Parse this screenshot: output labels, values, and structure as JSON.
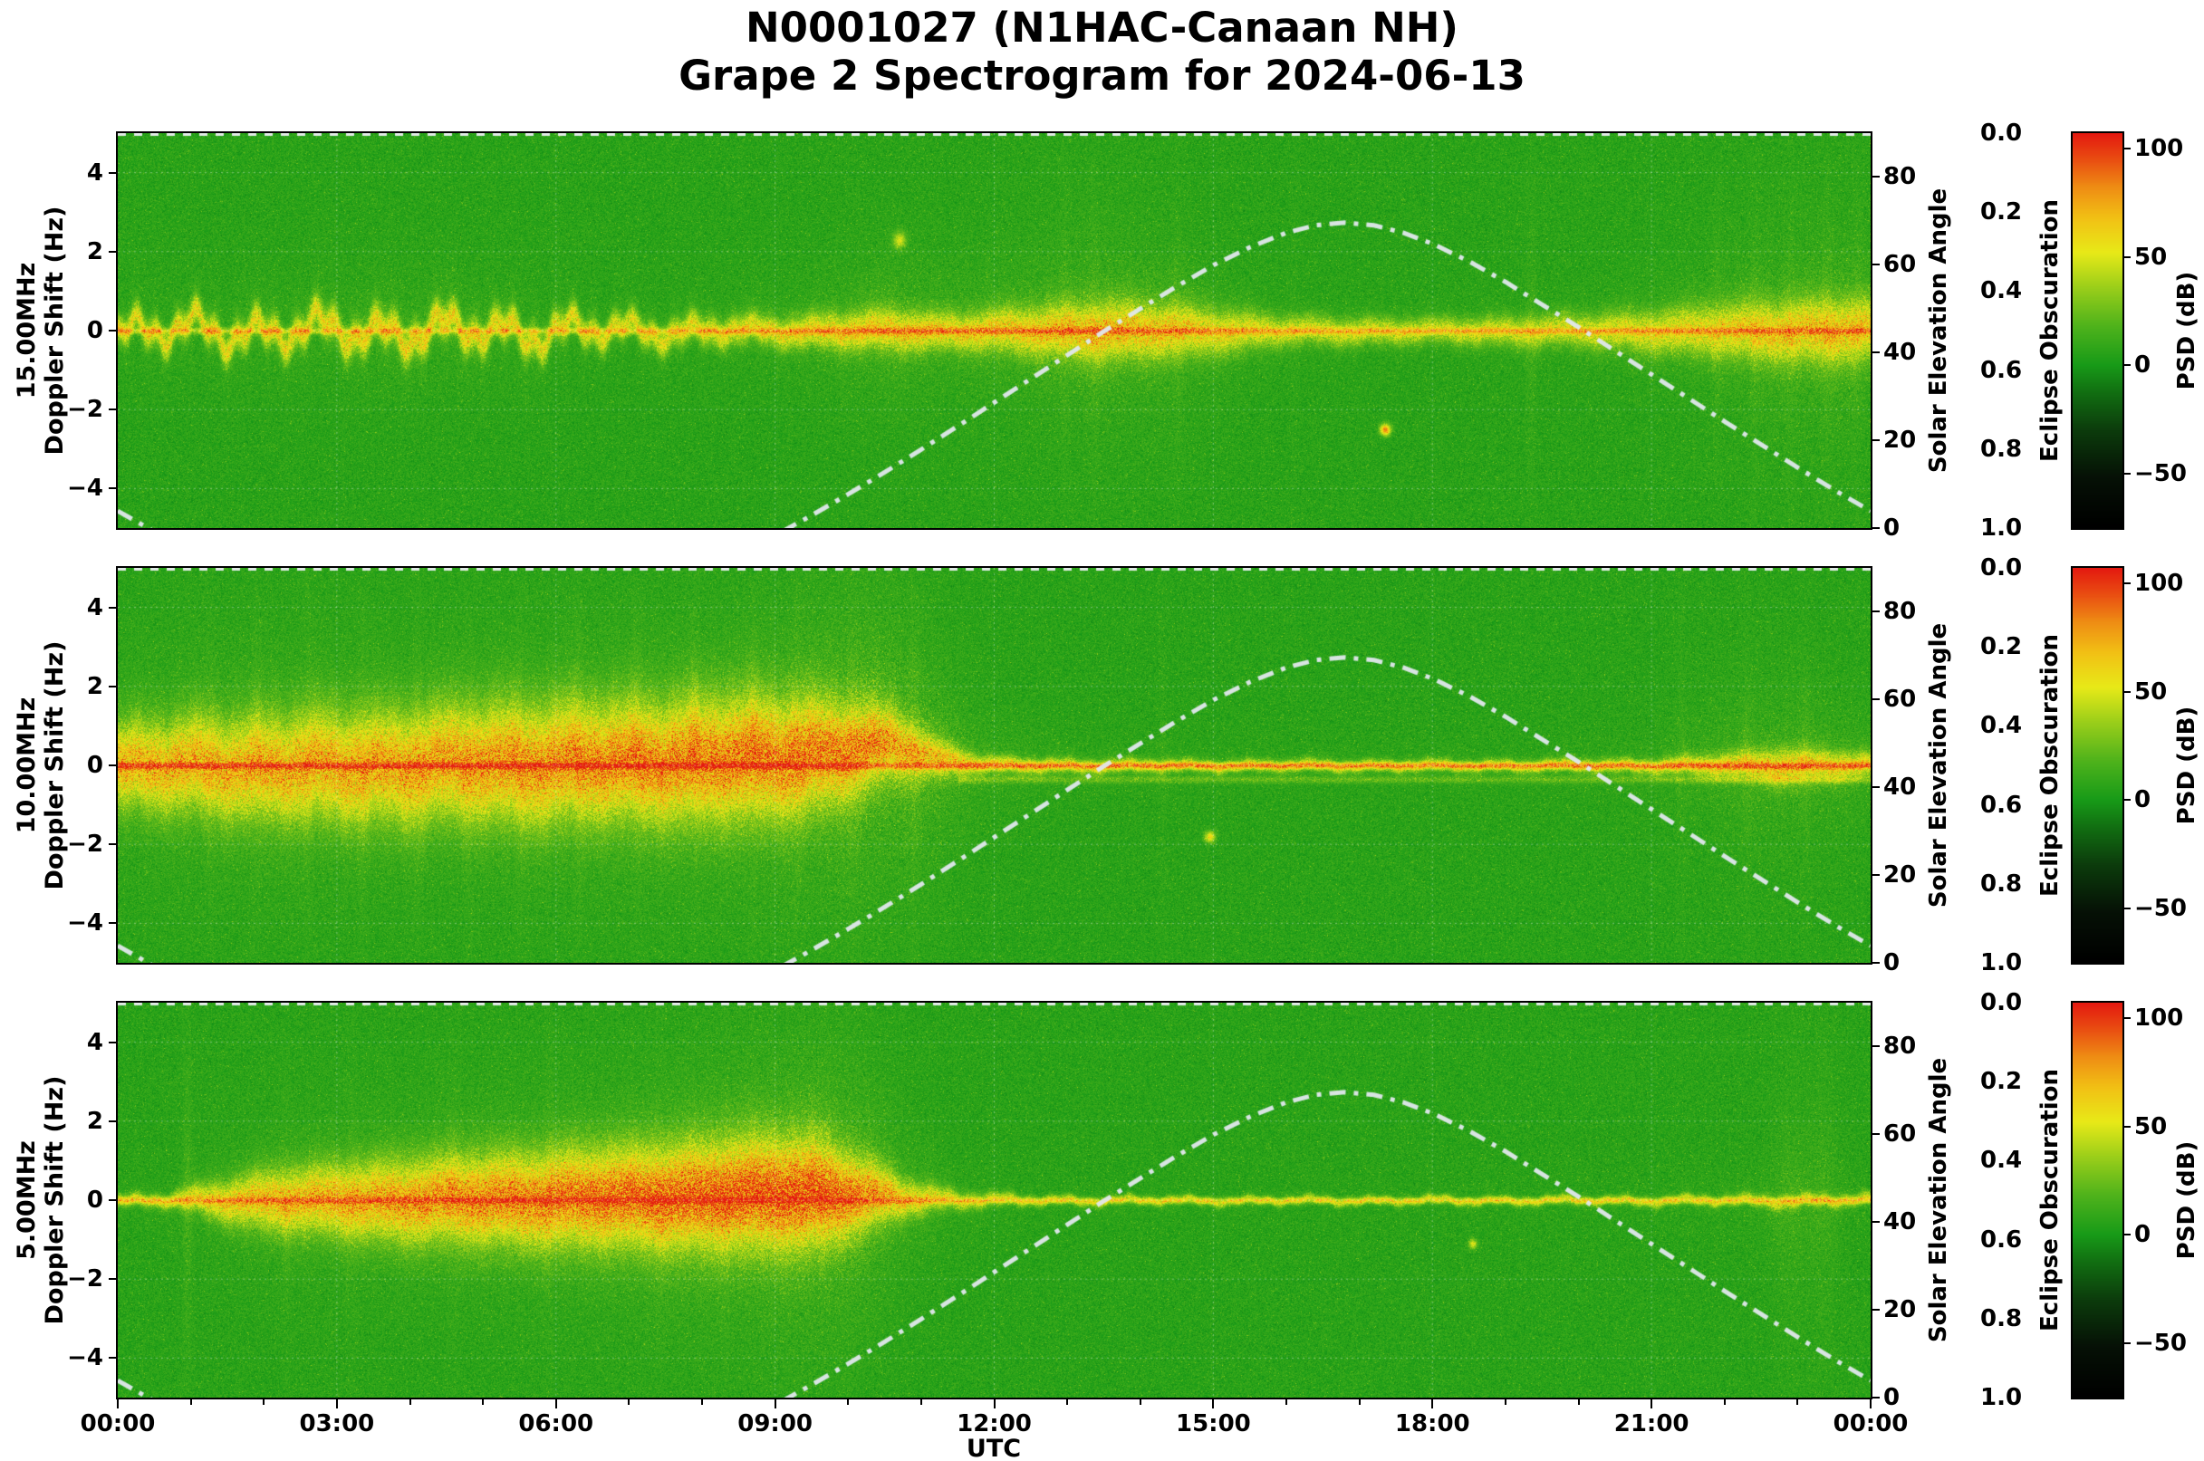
{
  "title": {
    "line1": "N0001027 (N1HAC-Canaan NH)",
    "line2": "Grape 2 Spectrogram for 2024-06-13"
  },
  "chart_data": {
    "type": "heatmap",
    "description": "Three stacked Doppler-shift spectrograms (15, 10, 5 MHz) vs UTC time with solar elevation dash-dot curve overlay",
    "x_axis": {
      "label": "UTC",
      "range_hours": [
        0,
        24
      ],
      "tick_hours": [
        0,
        3,
        6,
        9,
        12,
        15,
        18,
        21,
        24
      ],
      "tick_labels": [
        "00:00",
        "03:00",
        "06:00",
        "09:00",
        "12:00",
        "15:00",
        "18:00",
        "21:00",
        "00:00"
      ]
    },
    "doppler_axis": {
      "range": [
        -5,
        5
      ],
      "tick_values": [
        -4,
        -2,
        0,
        2,
        4
      ],
      "tick_labels": [
        "−4",
        "−2",
        "0",
        "2",
        "4"
      ]
    },
    "solar_axis": {
      "label": "Solar Elevation Angle",
      "range": [
        0,
        90
      ],
      "tick_values": [
        0,
        20,
        40,
        60,
        80
      ],
      "tick_labels": [
        "0",
        "20",
        "40",
        "60",
        "80"
      ]
    },
    "eclipse_axis": {
      "label": "Eclipse Obscuration",
      "range": [
        0,
        1
      ],
      "direction": "inverted",
      "tick_labels": [
        "0.0",
        "0.2",
        "0.4",
        "0.6",
        "0.8",
        "1.0"
      ]
    },
    "colorbar": {
      "label": "PSD (dB)",
      "range": [
        -75,
        107
      ],
      "tick_values": [
        100,
        50,
        0,
        -50
      ],
      "tick_labels": [
        "100",
        "50",
        "0",
        "−50"
      ],
      "stops": [
        {
          "v": -75,
          "c": "#000000"
        },
        {
          "v": -52,
          "c": "#061106"
        },
        {
          "v": -30,
          "c": "#0c3c0c"
        },
        {
          "v": -12,
          "c": "#127112"
        },
        {
          "v": 0,
          "c": "#189b18"
        },
        {
          "v": 18,
          "c": "#4fb31c"
        },
        {
          "v": 36,
          "c": "#9ccf1a"
        },
        {
          "v": 52,
          "c": "#e8ea18"
        },
        {
          "v": 68,
          "c": "#f2c115"
        },
        {
          "v": 82,
          "c": "#ef8e14"
        },
        {
          "v": 94,
          "c": "#ea5212"
        },
        {
          "v": 107,
          "c": "#e41a10"
        }
      ]
    },
    "solar_elevation_curve": [
      [
        0,
        3.9
      ],
      [
        0.5,
        -0.8
      ],
      [
        1,
        -5.1
      ],
      [
        2,
        -12.8
      ],
      [
        3,
        -18.6
      ],
      [
        4,
        -22.2
      ],
      [
        5,
        -23.0
      ],
      [
        6,
        -21.1
      ],
      [
        7,
        -16.5
      ],
      [
        8,
        -9.9
      ],
      [
        9,
        -1.7
      ],
      [
        9.5,
        2.9
      ],
      [
        10,
        7.7
      ],
      [
        10.5,
        12.7
      ],
      [
        11,
        17.9
      ],
      [
        11.5,
        23.2
      ],
      [
        12,
        28.6
      ],
      [
        12.5,
        34.0
      ],
      [
        13,
        39.4
      ],
      [
        13.5,
        44.8
      ],
      [
        14,
        50.0
      ],
      [
        14.5,
        55.1
      ],
      [
        15,
        59.9
      ],
      [
        15.5,
        64.0
      ],
      [
        16,
        67.3
      ],
      [
        16.4,
        69.0
      ],
      [
        16.8,
        69.6
      ],
      [
        17.2,
        69.0
      ],
      [
        17.6,
        67.3
      ],
      [
        18,
        64.8
      ],
      [
        18.5,
        60.8
      ],
      [
        19,
        56.1
      ],
      [
        20,
        45.8
      ],
      [
        21,
        35.0
      ],
      [
        22,
        24.3
      ],
      [
        23,
        13.8
      ],
      [
        23.5,
        8.7
      ],
      [
        24,
        3.9
      ]
    ],
    "panels": [
      {
        "id": "15mhz",
        "ylabel_line1": "15.00MHz",
        "ylabel_line2": "Doppler Shift (Hz)",
        "band": {
          "h": [
            0,
            2,
            4,
            5.5,
            7,
            9,
            10.5,
            11.5,
            12.5,
            13.5,
            14.5,
            16,
            18,
            20,
            21.5,
            22.5,
            23.5,
            24
          ],
          "peak": [
            46,
            46,
            48,
            46,
            44,
            46,
            52,
            50,
            52,
            55,
            50,
            42,
            40,
            42,
            46,
            50,
            52,
            50
          ],
          "width": [
            0.22,
            0.25,
            0.28,
            0.25,
            0.22,
            0.25,
            0.35,
            0.3,
            0.4,
            0.5,
            0.45,
            0.25,
            0.22,
            0.28,
            0.4,
            0.5,
            0.55,
            0.5
          ],
          "fuzz": [
            14,
            16,
            20,
            16,
            10,
            14,
            26,
            22,
            26,
            30,
            26,
            8,
            7,
            10,
            18,
            26,
            30,
            26
          ],
          "lam": [
            0.7,
            0.9,
            1.1,
            0.9,
            0.6,
            0.8,
            1.4,
            1.2,
            1.5,
            1.8,
            1.5,
            0.5,
            0.45,
            0.7,
            1.2,
            1.6,
            1.8,
            1.6
          ],
          "wig_h": [
            0,
            6,
            7.5,
            9,
            11,
            24
          ],
          "wig_a": [
            0.32,
            0.3,
            0.18,
            0.08,
            0.05,
            0.05
          ],
          "line": 30
        },
        "streaks": [
          {
            "t": 12.95,
            "a": 8
          },
          {
            "t": 13.35,
            "a": 9
          },
          {
            "t": 14.5,
            "a": 8
          },
          {
            "t": 16.1,
            "a": 6
          },
          {
            "t": 19.35,
            "a": 12
          },
          {
            "t": 21.9,
            "a": 8
          },
          {
            "t": 22.4,
            "a": 9
          },
          {
            "t": 22.9,
            "a": 9
          },
          {
            "t": 23.4,
            "a": 10
          },
          {
            "t": 23.8,
            "a": 10
          }
        ],
        "spots": [
          {
            "t": 17.35,
            "f": -2.5,
            "a": 80,
            "st": 0.05,
            "sf": 0.1
          },
          {
            "t": 10.7,
            "f": 2.3,
            "a": 40,
            "st": 0.06,
            "sf": 0.15
          }
        ]
      },
      {
        "id": "10mhz",
        "ylabel_line1": "10.00MHz",
        "ylabel_line2": "Doppler Shift (Hz)",
        "band": {
          "h": [
            0,
            1,
            2.5,
            4,
            5.5,
            7,
            8.5,
            9.5,
            10.3,
            11,
            11.8,
            13,
            15,
            17,
            19,
            21,
            22,
            22.8,
            23.5,
            24
          ],
          "peak": [
            56,
            55,
            56,
            58,
            62,
            64,
            66,
            64,
            60,
            52,
            48,
            46,
            45,
            44,
            44,
            46,
            50,
            52,
            50,
            48
          ],
          "width": [
            0.7,
            0.8,
            0.9,
            0.95,
            1.0,
            1.0,
            1.05,
            0.95,
            0.7,
            0.4,
            0.15,
            0.12,
            0.1,
            0.1,
            0.1,
            0.12,
            0.2,
            0.3,
            0.25,
            0.2
          ],
          "fuzz": [
            30,
            34,
            36,
            34,
            36,
            38,
            40,
            46,
            48,
            40,
            18,
            10,
            8,
            7,
            7,
            12,
            22,
            26,
            22,
            18
          ],
          "lam": [
            1.4,
            1.7,
            1.8,
            1.7,
            1.8,
            1.9,
            2.0,
            2.3,
            2.4,
            2.0,
            1.0,
            0.5,
            0.4,
            0.4,
            0.4,
            0.7,
            1.2,
            1.4,
            1.2,
            1.0
          ],
          "c_h": [
            0,
            3,
            5,
            7,
            9,
            9.8,
            10.6,
            11.2,
            12,
            24
          ],
          "c_v": [
            0,
            -0.05,
            0.05,
            0.1,
            0.2,
            0.35,
            0.55,
            0.2,
            0,
            0
          ],
          "wig_h": [
            0,
            10,
            11,
            24
          ],
          "wig_a": [
            0.12,
            0.1,
            0.04,
            0.04
          ],
          "line": 38,
          "line2": {
            "f": -0.35,
            "a": 16,
            "from": 11.5
          }
        },
        "streaks": [
          {
            "t": 1.25,
            "a": 10
          },
          {
            "t": 1.9,
            "a": 9
          },
          {
            "t": 2.6,
            "a": 10
          },
          {
            "t": 3.35,
            "a": 11
          },
          {
            "t": 4.1,
            "a": 10
          },
          {
            "t": 4.8,
            "a": 9
          },
          {
            "t": 5.5,
            "a": 10
          },
          {
            "t": 6.3,
            "a": 11
          },
          {
            "t": 7.1,
            "a": 10
          },
          {
            "t": 7.9,
            "a": 11
          },
          {
            "t": 8.7,
            "a": 10
          },
          {
            "t": 9.3,
            "a": 9
          },
          {
            "t": 10.05,
            "a": 10
          },
          {
            "t": 10.9,
            "a": 12
          },
          {
            "t": 14.3,
            "a": 7
          },
          {
            "t": 21.4,
            "a": 8
          },
          {
            "t": 22.3,
            "a": 9
          },
          {
            "t": 23.1,
            "a": 8
          }
        ],
        "spots": [
          {
            "t": 14.95,
            "f": -1.8,
            "a": 55,
            "st": 0.05,
            "sf": 0.1
          }
        ]
      },
      {
        "id": "5mhz",
        "ylabel_line1": "5.00MHz",
        "ylabel_line2": "Doppler Shift (Hz)",
        "band": {
          "h": [
            0,
            0.7,
            1.3,
            2,
            3,
            4,
            5,
            6,
            7,
            8,
            9,
            9.6,
            10.2,
            10.8,
            11.5,
            12.5,
            14,
            17,
            20,
            22,
            22.8,
            23.4,
            24
          ],
          "peak": [
            40,
            42,
            50,
            55,
            58,
            62,
            66,
            68,
            70,
            72,
            74,
            72,
            62,
            50,
            40,
            34,
            33,
            33,
            34,
            35,
            36,
            38,
            38
          ],
          "width": [
            0.1,
            0.12,
            0.3,
            0.5,
            0.6,
            0.7,
            0.75,
            0.8,
            0.85,
            0.9,
            0.95,
            0.9,
            0.6,
            0.3,
            0.15,
            0.08,
            0.07,
            0.07,
            0.07,
            0.09,
            0.12,
            0.1,
            0.1
          ],
          "fuzz": [
            6,
            8,
            18,
            26,
            30,
            32,
            34,
            36,
            40,
            44,
            48,
            50,
            44,
            24,
            10,
            5,
            4,
            4,
            5,
            8,
            14,
            10,
            6
          ],
          "lam": [
            0.4,
            0.5,
            0.9,
            1.2,
            1.3,
            1.4,
            1.5,
            1.6,
            1.7,
            1.9,
            2.1,
            2.2,
            2.0,
            1.2,
            0.6,
            0.3,
            0.25,
            0.25,
            0.3,
            0.5,
            0.8,
            0.6,
            0.4
          ],
          "c_h": [
            0,
            2,
            4,
            6,
            8,
            9.5,
            10.5,
            12,
            24
          ],
          "c_v": [
            0,
            0,
            0,
            0.05,
            0.1,
            0.2,
            0.1,
            0,
            0
          ],
          "wig_h": [
            0,
            24
          ],
          "wig_a": [
            0.06,
            0.06
          ],
          "line": 26
        },
        "streaks": [
          {
            "t": 0.95,
            "a": 16
          },
          {
            "t": 2.3,
            "a": 7
          },
          {
            "t": 3.2,
            "a": 7
          },
          {
            "t": 4.6,
            "a": 7
          },
          {
            "t": 5.9,
            "a": 8
          },
          {
            "t": 7.4,
            "a": 7
          },
          {
            "t": 8.3,
            "a": 7
          },
          {
            "t": 22.9,
            "a": 10,
            "w": 0.15
          },
          {
            "t": 23.35,
            "a": 11,
            "w": 0.15
          }
        ],
        "spots": [
          {
            "t": 18.55,
            "f": -1.1,
            "a": 45,
            "st": 0.04,
            "sf": 0.09
          }
        ]
      }
    ]
  }
}
